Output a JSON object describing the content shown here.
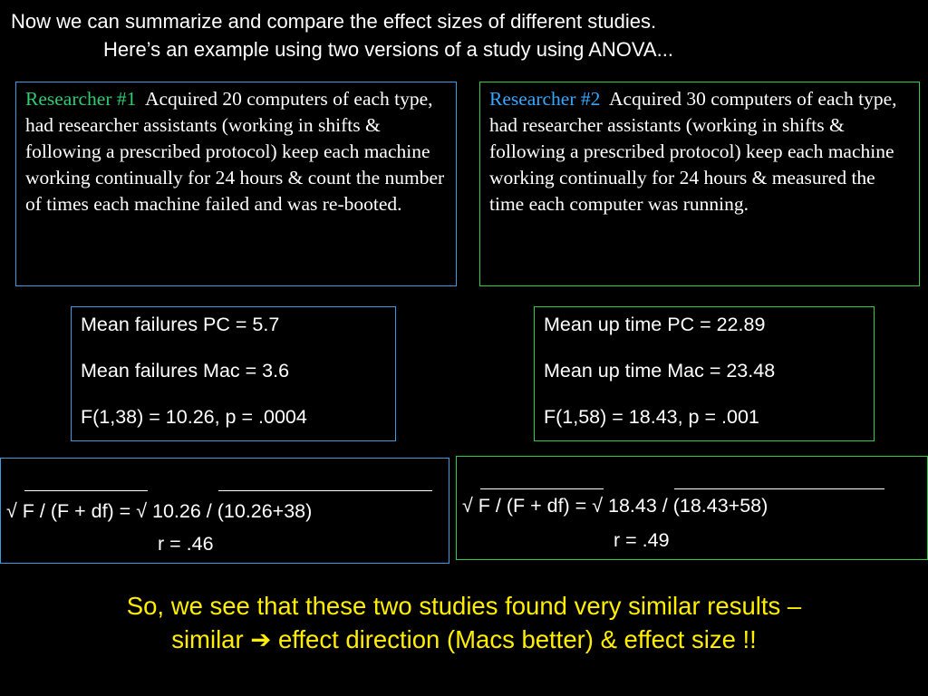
{
  "header": {
    "line1": "Now we can summarize and compare the effect sizes of different studies.",
    "line2": "Here’s an example using two versions of a study using ANOVA..."
  },
  "researcher1": {
    "name": "Researcher #1",
    "text": "Acquired 20 computers of each type, had researcher assistants (working in shifts & following a prescribed protocol) keep each machine working continually for 24 hours & count the number of times each machine failed and was re-booted."
  },
  "researcher2": {
    "name": "Researcher #2",
    "text": "Acquired 30 computers of each type, had researcher assistants (working in shifts & following a prescribed protocol) keep each machine working continually for 24 hours & measured the time each computer was running."
  },
  "stats1": {
    "line1": "Mean failures PC = 5.7",
    "line2": "Mean failures Mac = 3.6",
    "line3": "F(1,38) = 10.26, p = .0004"
  },
  "stats2": {
    "line1": "Mean up time PC = 22.89",
    "line2": "Mean up time Mac = 23.48",
    "line3": "F(1,58) = 18.43, p = .001"
  },
  "calc1": {
    "formula": "√ F / (F + df)    = √ 10.26 / (10.26+38)",
    "result": "r = .46"
  },
  "calc2": {
    "formula": "√ F / (F + df)    = √ 18.43 / (18.43+58)",
    "result": "r = .49"
  },
  "conclusion": {
    "line1": "So, we see that these two studies found very similar results –",
    "line2_pre": "similar ",
    "arrow": "➔",
    "line2_post": " effect direction  (Macs better) & effect size !!"
  },
  "colors": {
    "background": "#000000",
    "researcher1_label": "#2ecc71",
    "researcher2_label": "#35a8ff",
    "blue_border": "#3a9be0",
    "green_border": "#2ecc40",
    "conclusion_text": "#ffee00"
  }
}
